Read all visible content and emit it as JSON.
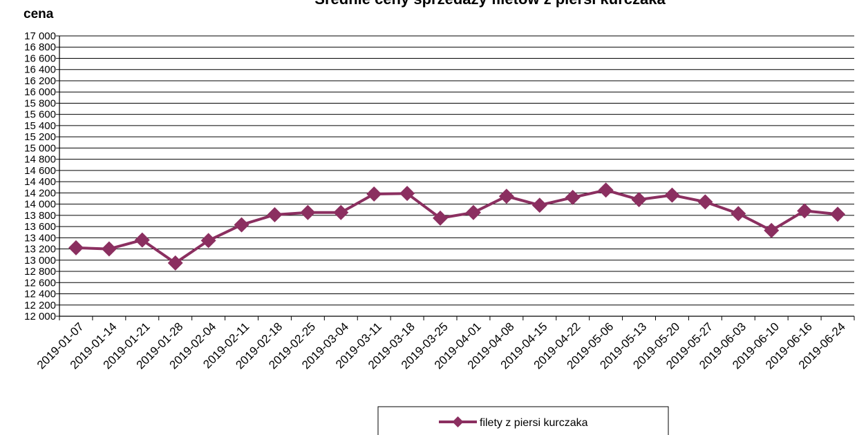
{
  "chart_data": {
    "type": "line",
    "title": "Średnie ceny sprzedaży filetów z piersi kurczaka",
    "ylabel": "cena",
    "xlabel": "",
    "ylim": [
      12000,
      17000
    ],
    "ystep": 200,
    "grid": true,
    "legend_position": "bottom",
    "categories": [
      "2019-01-07",
      "2019-01-14",
      "2019-01-21",
      "2019-01-28",
      "2019-02-04",
      "2019-02-11",
      "2019-02-18",
      "2019-02-25",
      "2019-03-04",
      "2019-03-11",
      "2019-03-18",
      "2019-03-25",
      "2019-04-01",
      "2019-04-08",
      "2019-04-15",
      "2019-04-22",
      "2019-05-06",
      "2019-05-13",
      "2019-05-20",
      "2019-05-27",
      "2019-06-03",
      "2019-06-10",
      "2019-06-16",
      "2019-06-24"
    ],
    "series": [
      {
        "name": "filety z piersi kurczaka",
        "color": "#8b2f60",
        "values": [
          13220,
          13200,
          13360,
          12950,
          13350,
          13630,
          13810,
          13850,
          13850,
          14180,
          14190,
          13750,
          13850,
          14140,
          13980,
          14120,
          14250,
          14080,
          14160,
          14040,
          13830,
          13530,
          13880,
          13820
        ]
      }
    ]
  }
}
